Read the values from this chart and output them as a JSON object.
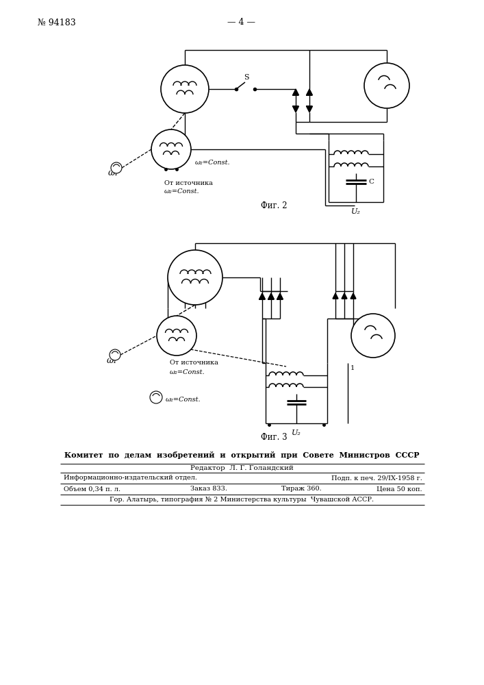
{
  "page_num_display": "№ 94183",
  "center_text": "— 4 —",
  "fig2_label": "Фиг. 2",
  "fig3_label": "Фиг. 3",
  "committee_text": "Комитет  по  делам  изобретений  и  открытий  при  Совете  Министров  СССР",
  "editor_text": "Редактор  Л. Г. Голандский",
  "info_line1_left": "Информационно-издательский отдел.",
  "info_line1_right": "Подп. к печ. 29/IX-1958 г.",
  "info_line2_left": "Объем 0,34 п. л.",
  "info_line2_center": "Заказ 833.",
  "info_line2_center2": "Тираж 360.",
  "info_line2_right": "Цена 50 коп.",
  "footer_text": "Гор. Алатырь, типография № 2 Министерства культуры  Чувашской АССР.",
  "omega1": "ω₁",
  "omega2const": "ω₂=Const.",
  "ot_istochnika": "От источника",
  "u2": "U₂",
  "c_label": "C",
  "background_color": "#ffffff"
}
